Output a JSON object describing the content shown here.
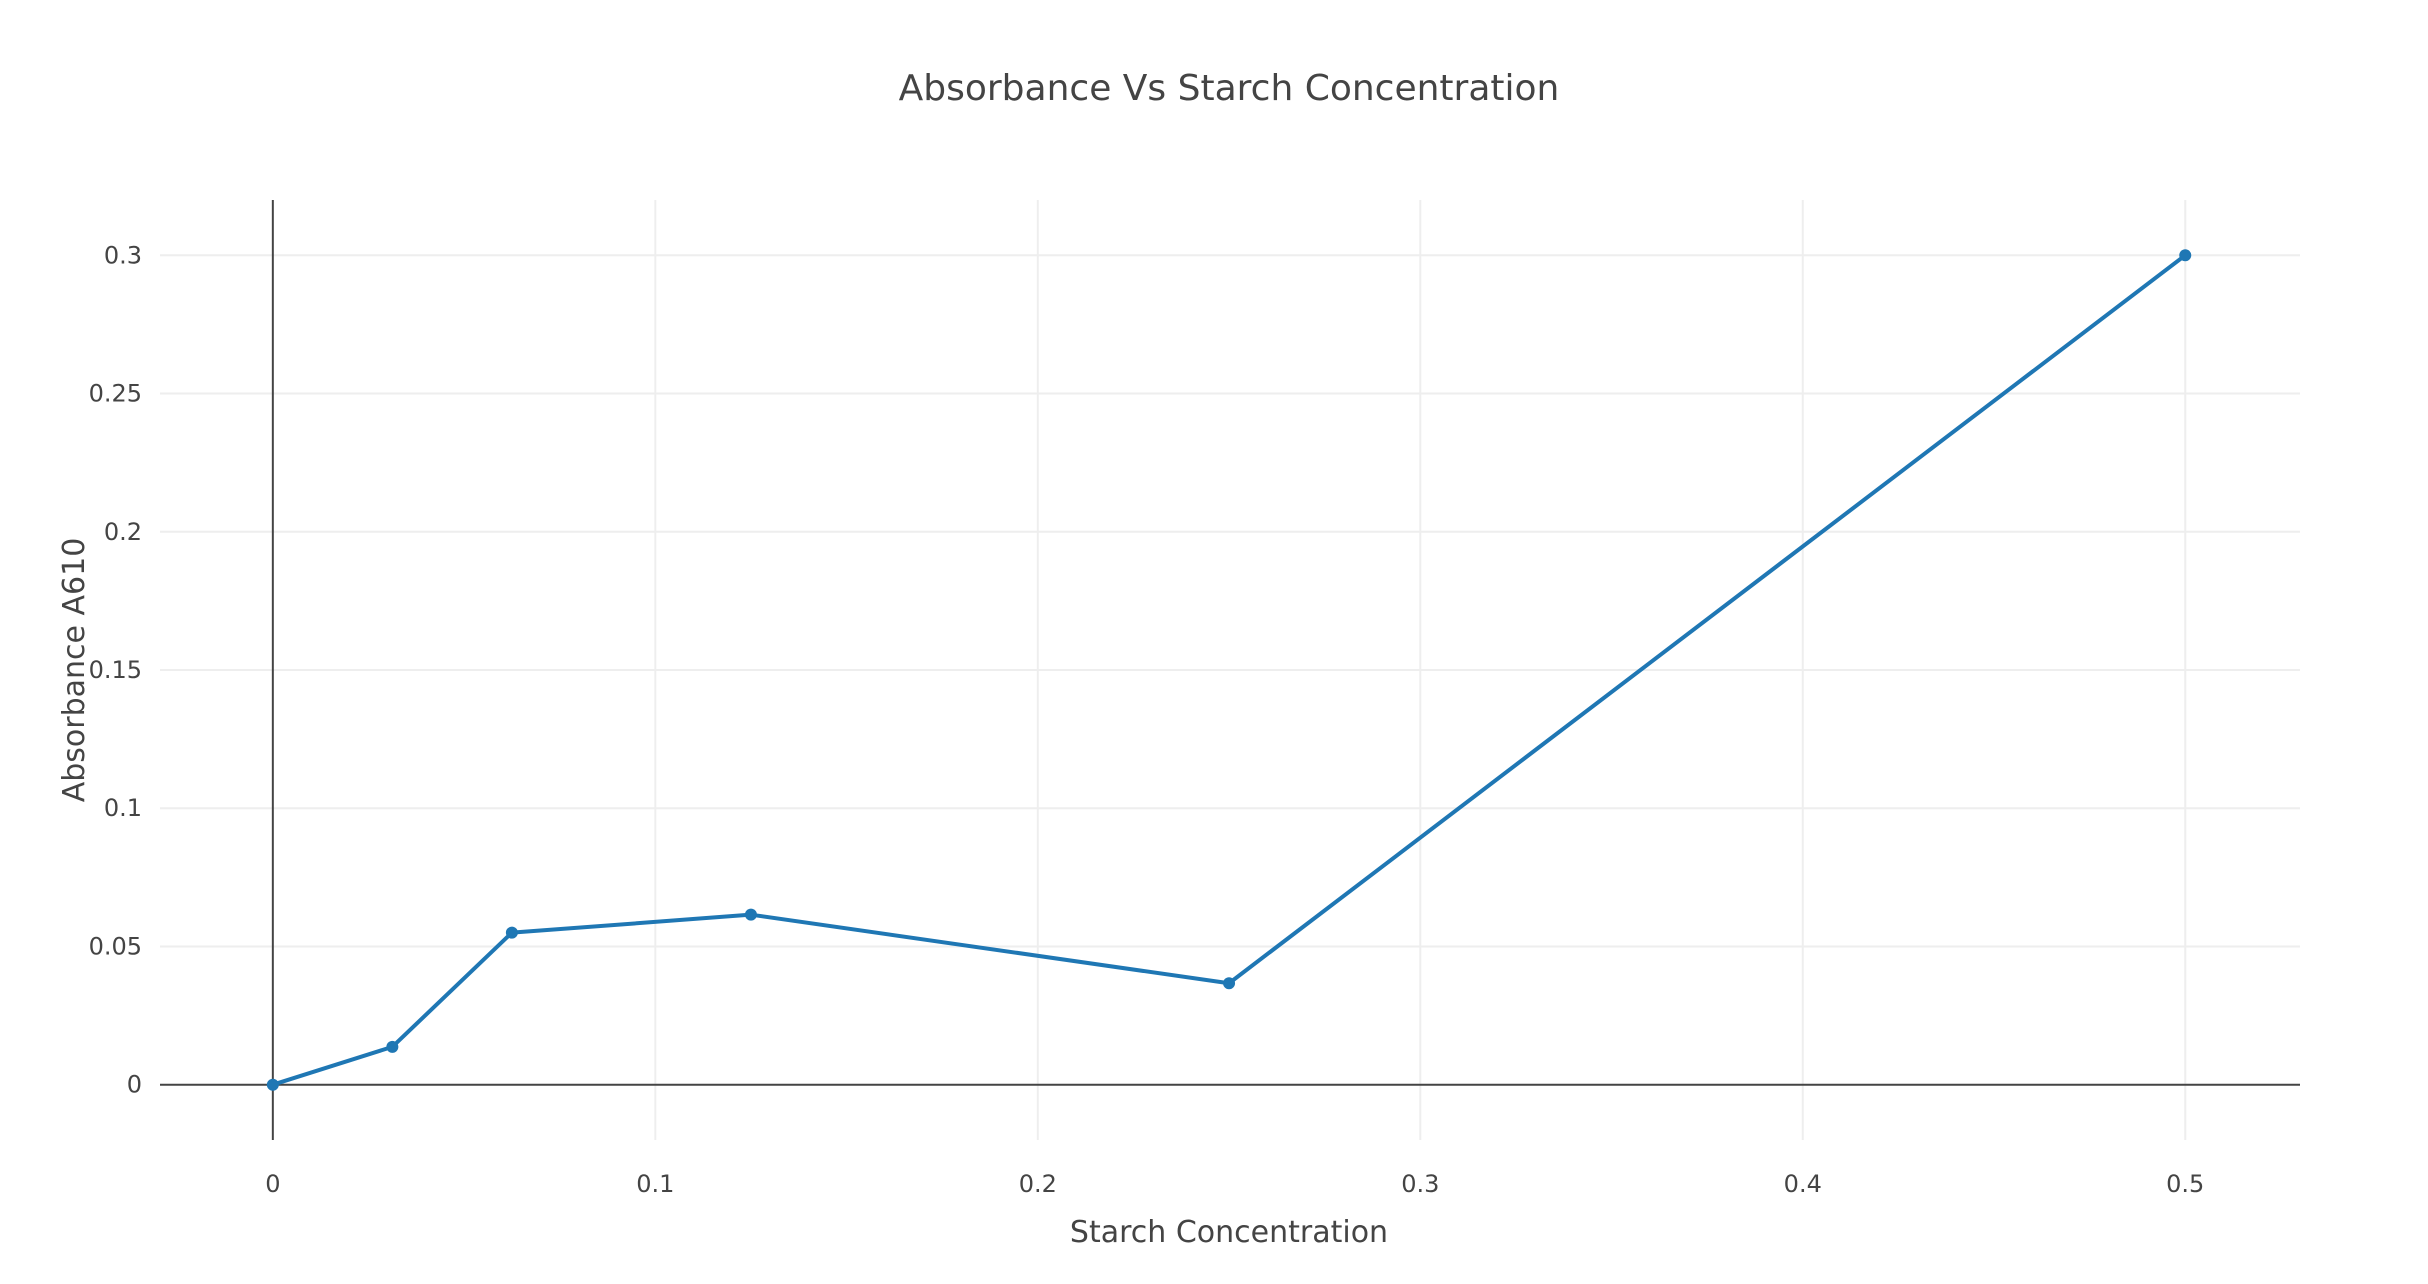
{
  "chart_data": {
    "type": "line",
    "title": "Absorbance Vs Starch Concentration",
    "xlabel": "Starch Concentration",
    "ylabel": "Absorbance A610",
    "xlim": [
      -0.0295,
      0.53
    ],
    "ylim": [
      -0.02,
      0.32
    ],
    "x_ticks": [
      0,
      0.1,
      0.2,
      0.3,
      0.4,
      0.5
    ],
    "x_tick_labels": [
      "0",
      "0.1",
      "0.2",
      "0.3",
      "0.4",
      "0.5"
    ],
    "y_ticks": [
      0,
      0.05,
      0.1,
      0.15,
      0.2,
      0.25,
      0.3
    ],
    "y_tick_labels": [
      "0",
      "0.05",
      "0.1",
      "0.15",
      "0.2",
      "0.25",
      "0.3"
    ],
    "grid": true,
    "series": [
      {
        "color": "#1f77b4",
        "mode": "lines+markers",
        "x": [
          0,
          0.03125,
          0.0625,
          0.125,
          0.25,
          0.5
        ],
        "y": [
          0,
          0.0137,
          0.055,
          0.0615,
          0.0367,
          0.3
        ]
      }
    ]
  }
}
